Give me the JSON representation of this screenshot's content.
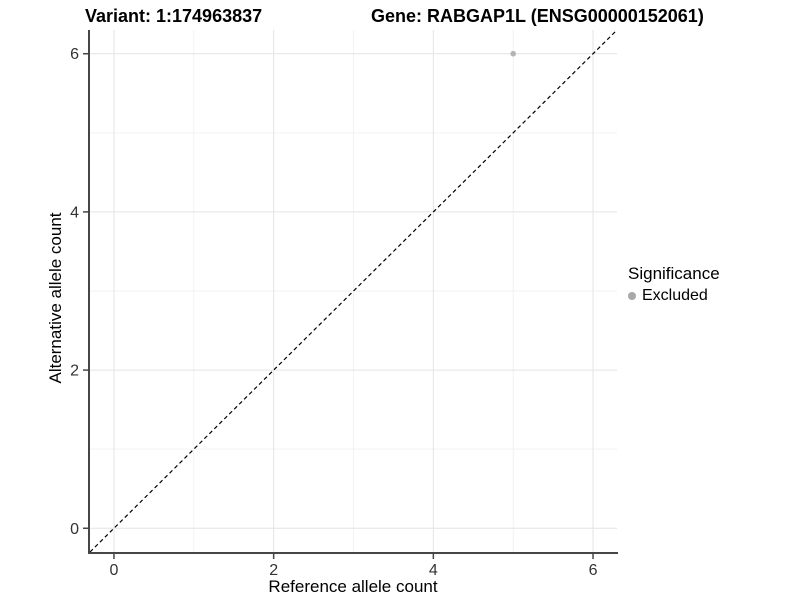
{
  "chart_data": {
    "type": "scatter",
    "titles": {
      "left": "Variant: 1:174963837",
      "right": "Gene: RABGAP1L (ENSG00000152061)"
    },
    "xlabel": "Reference allele count",
    "ylabel": "Alternative allele count",
    "xlim": [
      -0.3,
      6.3
    ],
    "ylim": [
      -0.3,
      6.3
    ],
    "x_ticks": [
      0,
      2,
      4,
      6
    ],
    "y_ticks": [
      0,
      2,
      4,
      6
    ],
    "x_minor_gridlines": [
      1,
      3,
      5
    ],
    "y_minor_gridlines": [
      1,
      3,
      5
    ],
    "grid": "on",
    "legend_position": "right",
    "points": [
      {
        "x": 5,
        "y": 6,
        "series": "Excluded"
      }
    ],
    "reference_line": {
      "style": "dashed",
      "from": [
        -0.3,
        -0.3
      ],
      "to": [
        6.3,
        6.3
      ]
    },
    "legend": {
      "title": "Significance",
      "entries": [
        {
          "label": "Excluded",
          "color": "#a8a8a8",
          "marker": "circle"
        }
      ]
    }
  },
  "colors": {
    "background": "#ffffff",
    "point": "#b4b4b4",
    "legend_dot": "#a8a8a8",
    "grid_major": "#e4e4e4",
    "grid_minor": "#f2f2f2",
    "axis_line": "#464646",
    "tick_label": "#333333",
    "title_text": "#000000",
    "reference_line": "#000000"
  }
}
